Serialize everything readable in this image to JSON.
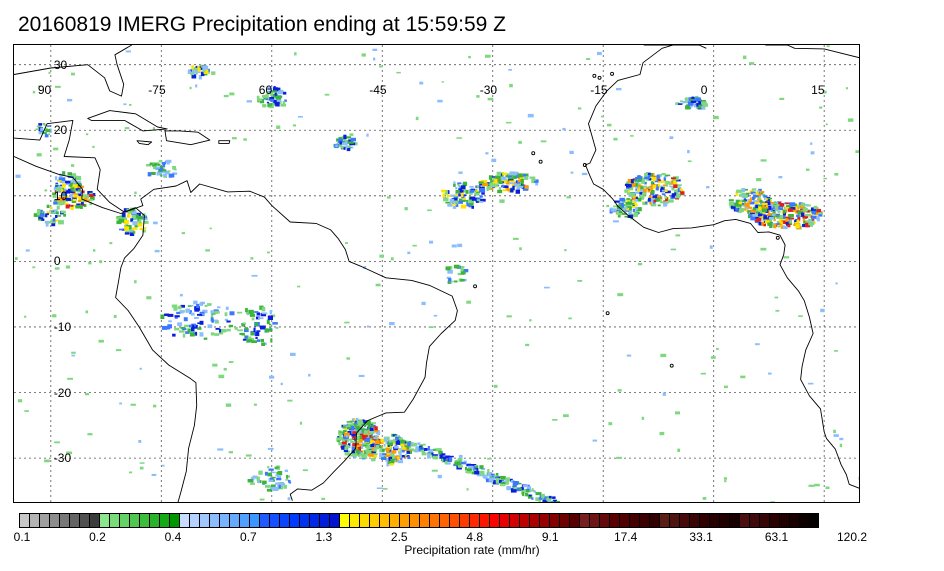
{
  "title": "20160819 IMERG Precipitation ending at 15:59:59 Z",
  "map": {
    "lon_range": [
      -95,
      20
    ],
    "lat_range": [
      -37,
      33
    ],
    "lon_labels": [
      "90",
      "-75",
      "60",
      "-45",
      "-30",
      "-15",
      "0",
      "15"
    ],
    "lat_labels": [
      "30",
      "20",
      "10",
      "0",
      "-10",
      "-20",
      "-30"
    ]
  },
  "colorbar": {
    "colors": [
      "#c8c8c8",
      "#b4b4b4",
      "#a0a0a0",
      "#8c8c8c",
      "#787878",
      "#646464",
      "#505050",
      "#3c3c3c",
      "#8ce68c",
      "#78dc78",
      "#64d264",
      "#50c850",
      "#3cbe3c",
      "#28b428",
      "#14aa14",
      "#009600",
      "#c8dcff",
      "#b4d2ff",
      "#a0c8ff",
      "#8cbeff",
      "#78b4ff",
      "#64aaff",
      "#50a0ff",
      "#3c96ff",
      "#1e5aff",
      "#1450ff",
      "#0a46ff",
      "#003cff",
      "#0032f0",
      "#0028e6",
      "#001edc",
      "#0014d2",
      "#ffff00",
      "#ffeb00",
      "#ffdc00",
      "#ffcd00",
      "#ffbe00",
      "#ffaf00",
      "#ffa000",
      "#ff9100",
      "#ff8200",
      "#ff7300",
      "#ff6400",
      "#ff5000",
      "#ff3c00",
      "#ff2800",
      "#ff1400",
      "#ff0000",
      "#e60000",
      "#d20000",
      "#be0000",
      "#aa0000",
      "#960000",
      "#820000",
      "#6e0000",
      "#5a0000",
      "#781e1e",
      "#6e1414",
      "#640a0a",
      "#5a0000",
      "#500000",
      "#460000",
      "#3c0000",
      "#320000",
      "#5a1e14",
      "#501410",
      "#460a0a",
      "#3c0505",
      "#300000",
      "#280000",
      "#200000",
      "#180000",
      "#4b0f0f",
      "#410a0a",
      "#370505",
      "#2d0000",
      "#230000",
      "#190000",
      "#0f0000",
      "#050000"
    ],
    "tick_labels": [
      "0.1",
      "0.2",
      "0.4",
      "0.7",
      "1.3",
      "2.5",
      "4.8",
      "9.1",
      "17.4",
      "33.1",
      "63.1",
      "120.2"
    ],
    "label": "Precipitation rate (mm/hr)"
  },
  "colors": {
    "coast": "#000000",
    "grid": "#555555",
    "light_green": "#7fd87f",
    "mid_green": "#3cb43c",
    "light_blue": "#8cbeff",
    "blue": "#3c78ff",
    "dark_blue": "#0a1edc",
    "yellow": "#ffe400",
    "orange": "#ff9900",
    "red": "#e01e1e"
  }
}
